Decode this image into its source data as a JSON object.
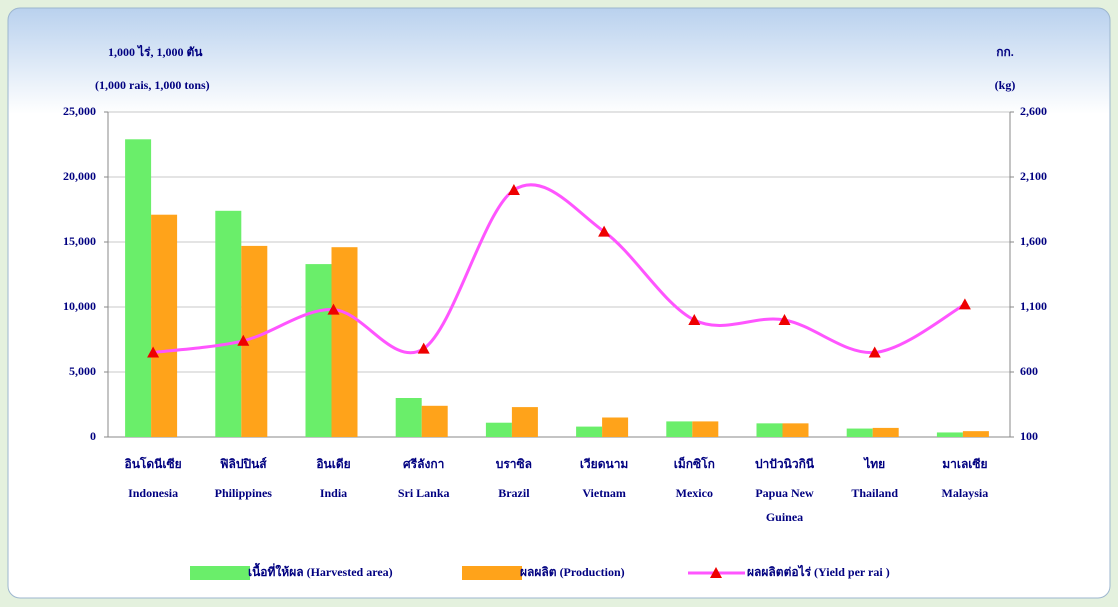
{
  "chart_data": {
    "type": "bar",
    "y_label_lines": [
      "1,000 ไร่, 1,000 ตัน",
      "(1,000 rais, 1,000 tons)"
    ],
    "y2_label_lines": [
      "กก.",
      "(kg)"
    ],
    "categories_thai": [
      "อินโดนีเซีย",
      "ฟิลิปปินส์",
      "อินเดีย",
      "ศรีลังกา",
      "บราซิล",
      "เวียดนาม",
      "เม็กซิโก",
      "ปาปัวนิวกินี",
      "ไทย",
      "มาเลเซีย"
    ],
    "categories": [
      "Indonesia",
      "Philippines",
      "India",
      "Sri Lanka",
      "Brazil",
      "Vietnam",
      "Mexico",
      "Papua New Guinea",
      "Thailand",
      "Malaysia"
    ],
    "series": [
      {
        "name": "เนื้อที่ให้ผล (Harvested area)",
        "type": "bar",
        "color": "#6aee6a",
        "values": [
          22900,
          17400,
          13300,
          3000,
          1100,
          800,
          1200,
          1050,
          650,
          350
        ]
      },
      {
        "name": "ผลผลิต  (Production)",
        "type": "bar",
        "color": "#ffa31a",
        "values": [
          17100,
          14700,
          14600,
          2400,
          2300,
          1500,
          1200,
          1050,
          700,
          450
        ]
      },
      {
        "name": "ผลผลิตต่อไร่ (Yield per rai )",
        "type": "line",
        "axis": "y2",
        "color": "#ff55ff",
        "marker_color": "#ee0000",
        "values": [
          750,
          840,
          1080,
          780,
          2000,
          1680,
          1000,
          1000,
          750,
          1120
        ]
      }
    ],
    "ylim": [
      0,
      25000
    ],
    "yticks": [
      0,
      {
        "value": 5000,
        "label": "5,000"
      },
      {
        "value": 10000,
        "label": "10,000"
      },
      {
        "value": 15000,
        "label": "15,000"
      },
      {
        "value": 20000,
        "label": "20,000"
      },
      {
        "value": 25000,
        "label": "25,000"
      }
    ],
    "y2lim": [
      100,
      2600
    ],
    "y2ticks": [
      100,
      600,
      {
        "value": 1100,
        "label": "1,100"
      },
      {
        "value": 1600,
        "label": "1,600"
      },
      {
        "value": 2100,
        "label": "2,100"
      },
      {
        "value": 2600,
        "label": "2,600"
      }
    ],
    "grid": true
  }
}
